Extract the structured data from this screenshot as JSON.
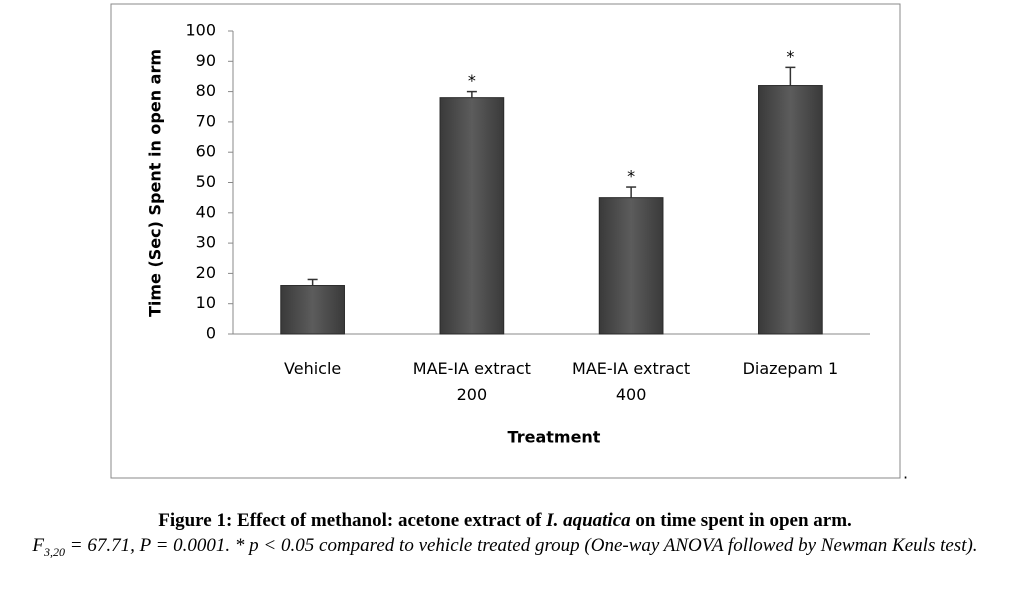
{
  "chart_data": {
    "type": "bar",
    "y_label": "Time (Sec) Spent in open arm",
    "x_label": "Treatment",
    "categories": [
      "Vehicle",
      "MAE-IA extract 200",
      "MAE-IA extract 400",
      "Diazepam 1"
    ],
    "values": [
      16,
      78,
      45,
      82
    ],
    "errors": [
      2,
      2,
      3.5,
      6
    ],
    "significance": [
      null,
      "*",
      "*",
      "*"
    ],
    "color": "#555555",
    "ylim": [
      0,
      100
    ],
    "yticks": [
      0,
      10,
      20,
      30,
      40,
      50,
      60,
      70,
      80,
      90,
      100
    ],
    "grid": false,
    "frame_note": "."
  },
  "caption": {
    "title": [
      "Figure 1: Effect of methanol: acetone extract of ",
      "I. aquatica",
      " on time spent in open arm."
    ],
    "note": [
      "F",
      "3,20",
      " = 67.71, P = 0.0001. * p < 0.05 compared to vehicle treated group (One-way ANOVA followed by Newman Keuls test)."
    ]
  }
}
